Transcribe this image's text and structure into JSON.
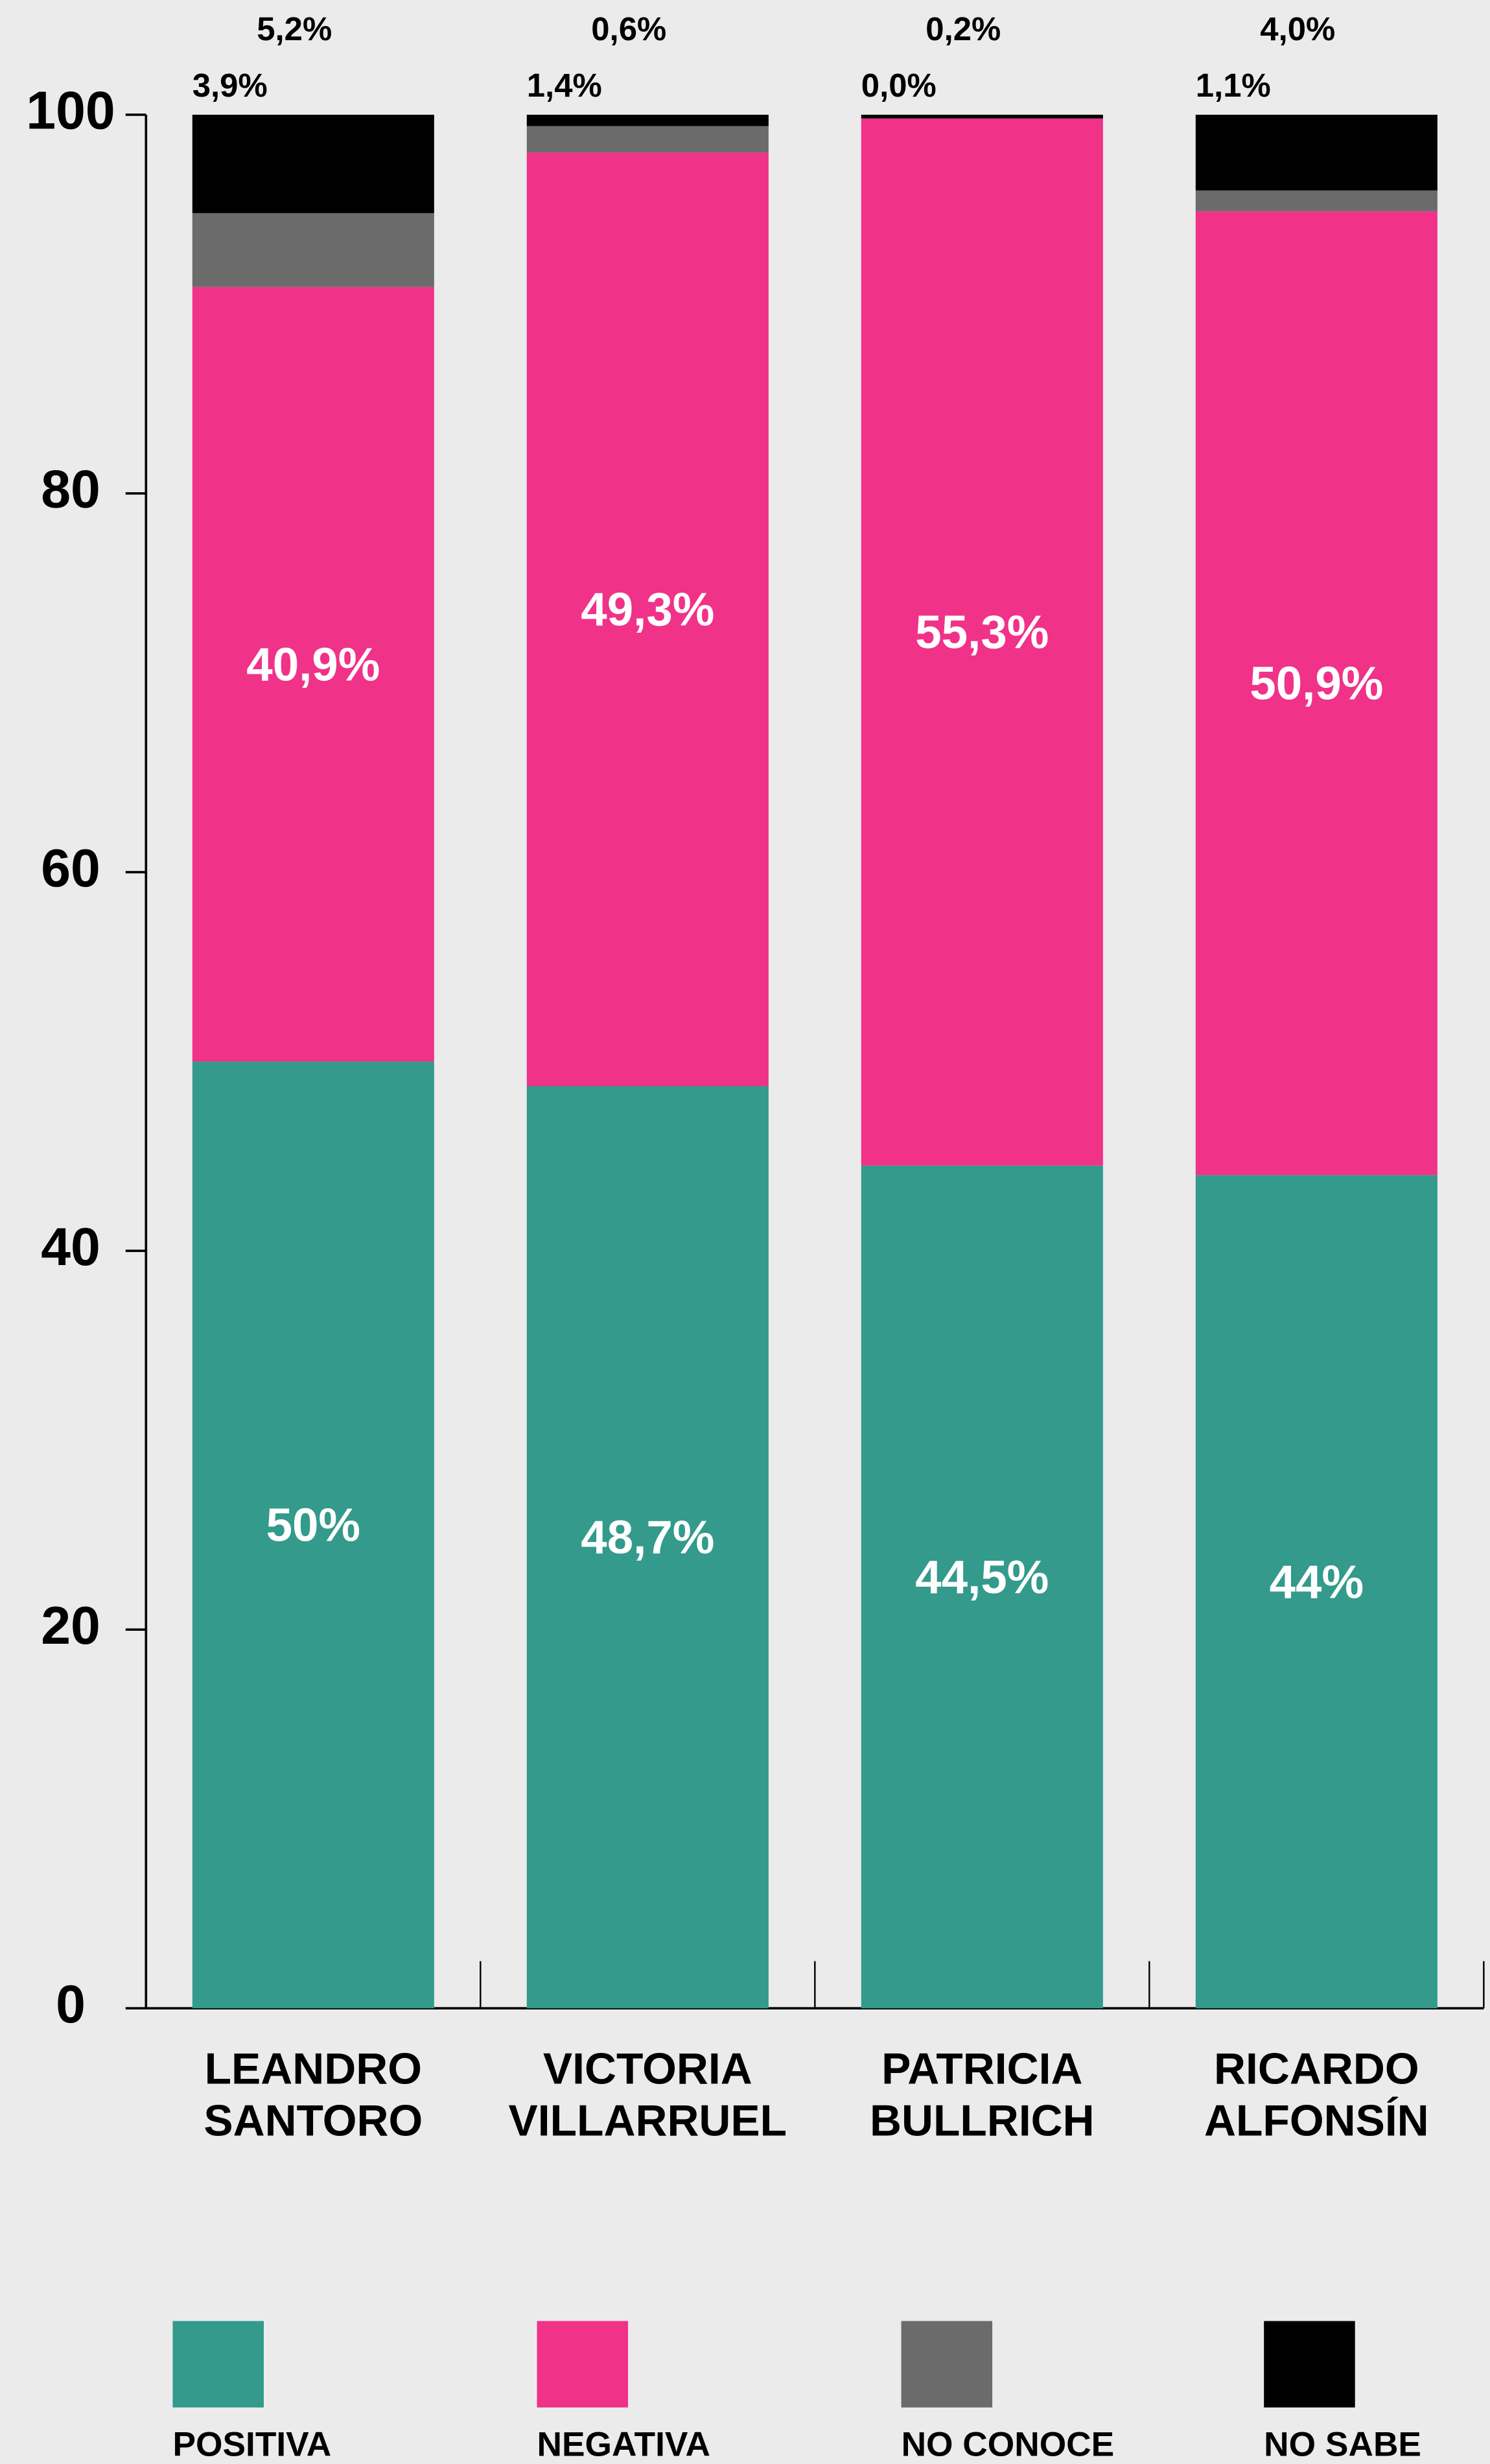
{
  "chart_data": {
    "type": "bar",
    "stacked": true,
    "categories": [
      "LEANDRO SANTORO",
      "VICTORIA VILLARRUEL",
      "PATRICIA BULLRICH",
      "RICARDO ALFONSÍN"
    ],
    "series": [
      {
        "name": "POSITIVA",
        "color": "#339a8c",
        "values": [
          50,
          48.7,
          44.5,
          44
        ],
        "value_labels": [
          "50%",
          "48,7%",
          "44,5%",
          "44%"
        ]
      },
      {
        "name": "NEGATIVA",
        "color": "#f03289",
        "values": [
          40.9,
          49.3,
          55.3,
          50.9
        ],
        "value_labels": [
          "40,9%",
          "49,3%",
          "55,3%",
          "50,9%"
        ]
      },
      {
        "name": "NO CONOCE",
        "color": "#6b6b6b",
        "values": [
          3.9,
          1.4,
          0.0,
          1.1
        ],
        "value_labels": [
          "3,9%",
          "1,4%",
          "0,0%",
          "1,1%"
        ]
      },
      {
        "name": "NO SABE",
        "color": "#000000",
        "values": [
          5.2,
          0.6,
          0.2,
          4.0
        ],
        "value_labels": [
          "5,2%",
          "0,6%",
          "0,2%",
          "4,0%"
        ]
      }
    ],
    "ylim": [
      0,
      100
    ],
    "yticks": [
      0,
      20,
      40,
      60,
      80,
      100
    ],
    "grid": false
  }
}
